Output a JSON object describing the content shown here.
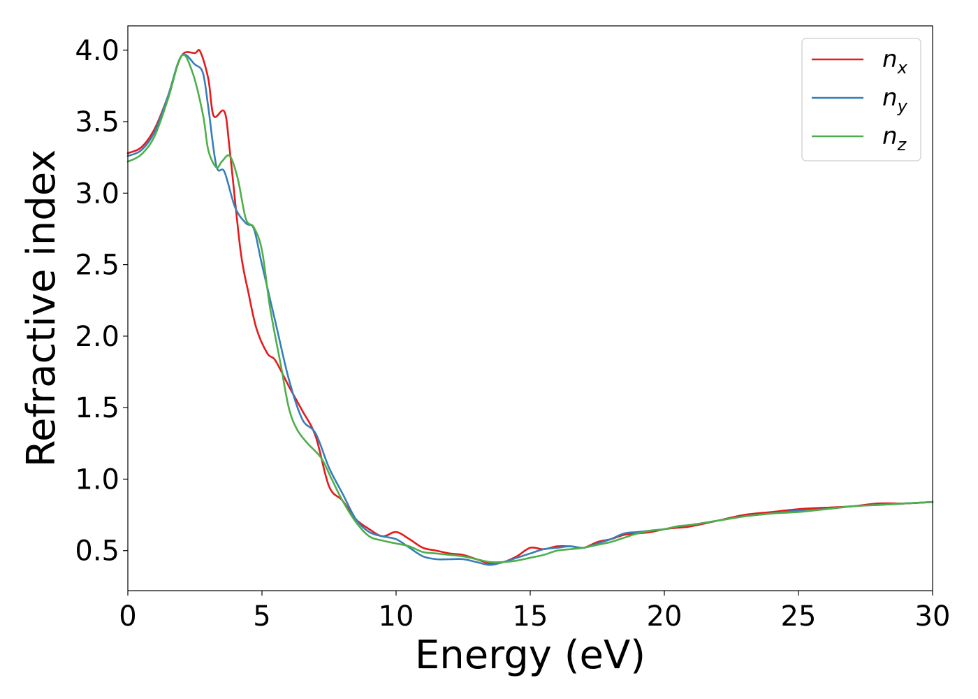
{
  "chart_data": {
    "type": "line",
    "xlabel": "Energy (eV)",
    "ylabel": "Refractive index",
    "xlim": [
      0,
      30
    ],
    "ylim": [
      0.22,
      4.17
    ],
    "xticks": [
      0,
      5,
      10,
      15,
      20,
      25,
      30
    ],
    "xtick_labels": [
      "0",
      "5",
      "10",
      "15",
      "20",
      "25",
      "30"
    ],
    "yticks": [
      0.5,
      1.0,
      1.5,
      2.0,
      2.5,
      3.0,
      3.5,
      4.0
    ],
    "ytick_labels": [
      "0.5",
      "1.0",
      "1.5",
      "2.0",
      "2.5",
      "3.0",
      "3.5",
      "4.0"
    ],
    "grid": false,
    "legend_position": "top-right",
    "series": [
      {
        "name": "n",
        "subscript": "x",
        "color": "#e41a1c",
        "x": [
          0,
          0.5,
          1.0,
          1.5,
          2.0,
          2.5,
          2.7,
          3.0,
          3.2,
          3.6,
          3.8,
          4.2,
          4.5,
          4.8,
          5.2,
          5.5,
          6.0,
          6.5,
          7.0,
          7.5,
          8.0,
          8.5,
          9.0,
          9.5,
          10.0,
          10.5,
          11.0,
          11.5,
          12.0,
          12.5,
          13.0,
          13.5,
          14.0,
          14.5,
          15.0,
          15.5,
          16.0,
          16.5,
          17.0,
          17.5,
          18.0,
          18.5,
          19.0,
          19.5,
          20.0,
          20.5,
          21.0,
          22.0,
          23.0,
          24.0,
          25.0,
          26.0,
          27.0,
          28.0,
          29.0,
          30.0
        ],
        "y": [
          3.28,
          3.32,
          3.45,
          3.68,
          3.96,
          3.98,
          3.99,
          3.8,
          3.54,
          3.57,
          3.3,
          2.6,
          2.3,
          2.05,
          1.88,
          1.83,
          1.65,
          1.48,
          1.3,
          0.95,
          0.85,
          0.72,
          0.65,
          0.6,
          0.63,
          0.58,
          0.52,
          0.5,
          0.48,
          0.47,
          0.44,
          0.41,
          0.42,
          0.46,
          0.52,
          0.51,
          0.53,
          0.53,
          0.52,
          0.56,
          0.58,
          0.61,
          0.62,
          0.63,
          0.65,
          0.66,
          0.67,
          0.71,
          0.75,
          0.77,
          0.79,
          0.8,
          0.81,
          0.83,
          0.83,
          0.84
        ]
      },
      {
        "name": "n",
        "subscript": "y",
        "color": "#377eb8",
        "x": [
          0,
          0.5,
          1.0,
          1.5,
          2.0,
          2.5,
          2.8,
          3.0,
          3.3,
          3.6,
          4.0,
          4.4,
          4.7,
          5.0,
          5.5,
          6.0,
          6.5,
          7.0,
          7.5,
          8.0,
          8.5,
          9.0,
          9.5,
          10.0,
          10.5,
          11.0,
          11.5,
          12.0,
          12.5,
          13.0,
          13.5,
          14.0,
          14.5,
          15.0,
          15.5,
          16.0,
          16.5,
          17.0,
          17.5,
          18.0,
          18.5,
          19.0,
          19.5,
          20.0,
          20.5,
          21.0,
          22.0,
          23.0,
          24.0,
          25.0,
          26.0,
          27.0,
          28.0,
          29.0,
          30.0
        ],
        "y": [
          3.26,
          3.3,
          3.43,
          3.68,
          3.96,
          3.9,
          3.84,
          3.6,
          3.19,
          3.15,
          2.9,
          2.79,
          2.75,
          2.5,
          2.1,
          1.7,
          1.42,
          1.32,
          1.08,
          0.9,
          0.72,
          0.63,
          0.6,
          0.58,
          0.52,
          0.46,
          0.44,
          0.44,
          0.44,
          0.42,
          0.4,
          0.42,
          0.45,
          0.48,
          0.51,
          0.52,
          0.53,
          0.52,
          0.55,
          0.58,
          0.62,
          0.63,
          0.64,
          0.65,
          0.67,
          0.68,
          0.71,
          0.74,
          0.76,
          0.78,
          0.79,
          0.81,
          0.82,
          0.83,
          0.84
        ]
      },
      {
        "name": "n",
        "subscript": "z",
        "color": "#4daf4a",
        "x": [
          0,
          0.5,
          1.0,
          1.5,
          2.0,
          2.4,
          2.8,
          3.0,
          3.3,
          3.5,
          3.8,
          4.1,
          4.4,
          4.7,
          5.0,
          5.3,
          5.7,
          6.0,
          6.3,
          6.7,
          7.2,
          7.6,
          8.0,
          8.5,
          9.0,
          9.5,
          10.0,
          10.5,
          11.0,
          11.5,
          12.0,
          12.5,
          13.0,
          13.5,
          14.0,
          14.5,
          15.0,
          15.5,
          16.0,
          16.5,
          17.0,
          17.5,
          18.0,
          18.5,
          19.0,
          19.5,
          20.0,
          20.5,
          21.0,
          22.0,
          23.0,
          24.0,
          25.0,
          26.0,
          27.0,
          28.0,
          29.0,
          30.0
        ],
        "y": [
          3.22,
          3.27,
          3.4,
          3.66,
          3.96,
          3.85,
          3.55,
          3.3,
          3.18,
          3.22,
          3.26,
          3.1,
          2.82,
          2.76,
          2.6,
          2.2,
          1.8,
          1.5,
          1.35,
          1.25,
          1.15,
          1.0,
          0.85,
          0.7,
          0.6,
          0.57,
          0.55,
          0.53,
          0.49,
          0.48,
          0.47,
          0.46,
          0.44,
          0.42,
          0.42,
          0.43,
          0.45,
          0.47,
          0.5,
          0.51,
          0.52,
          0.54,
          0.56,
          0.59,
          0.62,
          0.64,
          0.65,
          0.67,
          0.68,
          0.71,
          0.74,
          0.76,
          0.77,
          0.79,
          0.81,
          0.82,
          0.83,
          0.84
        ]
      }
    ]
  }
}
